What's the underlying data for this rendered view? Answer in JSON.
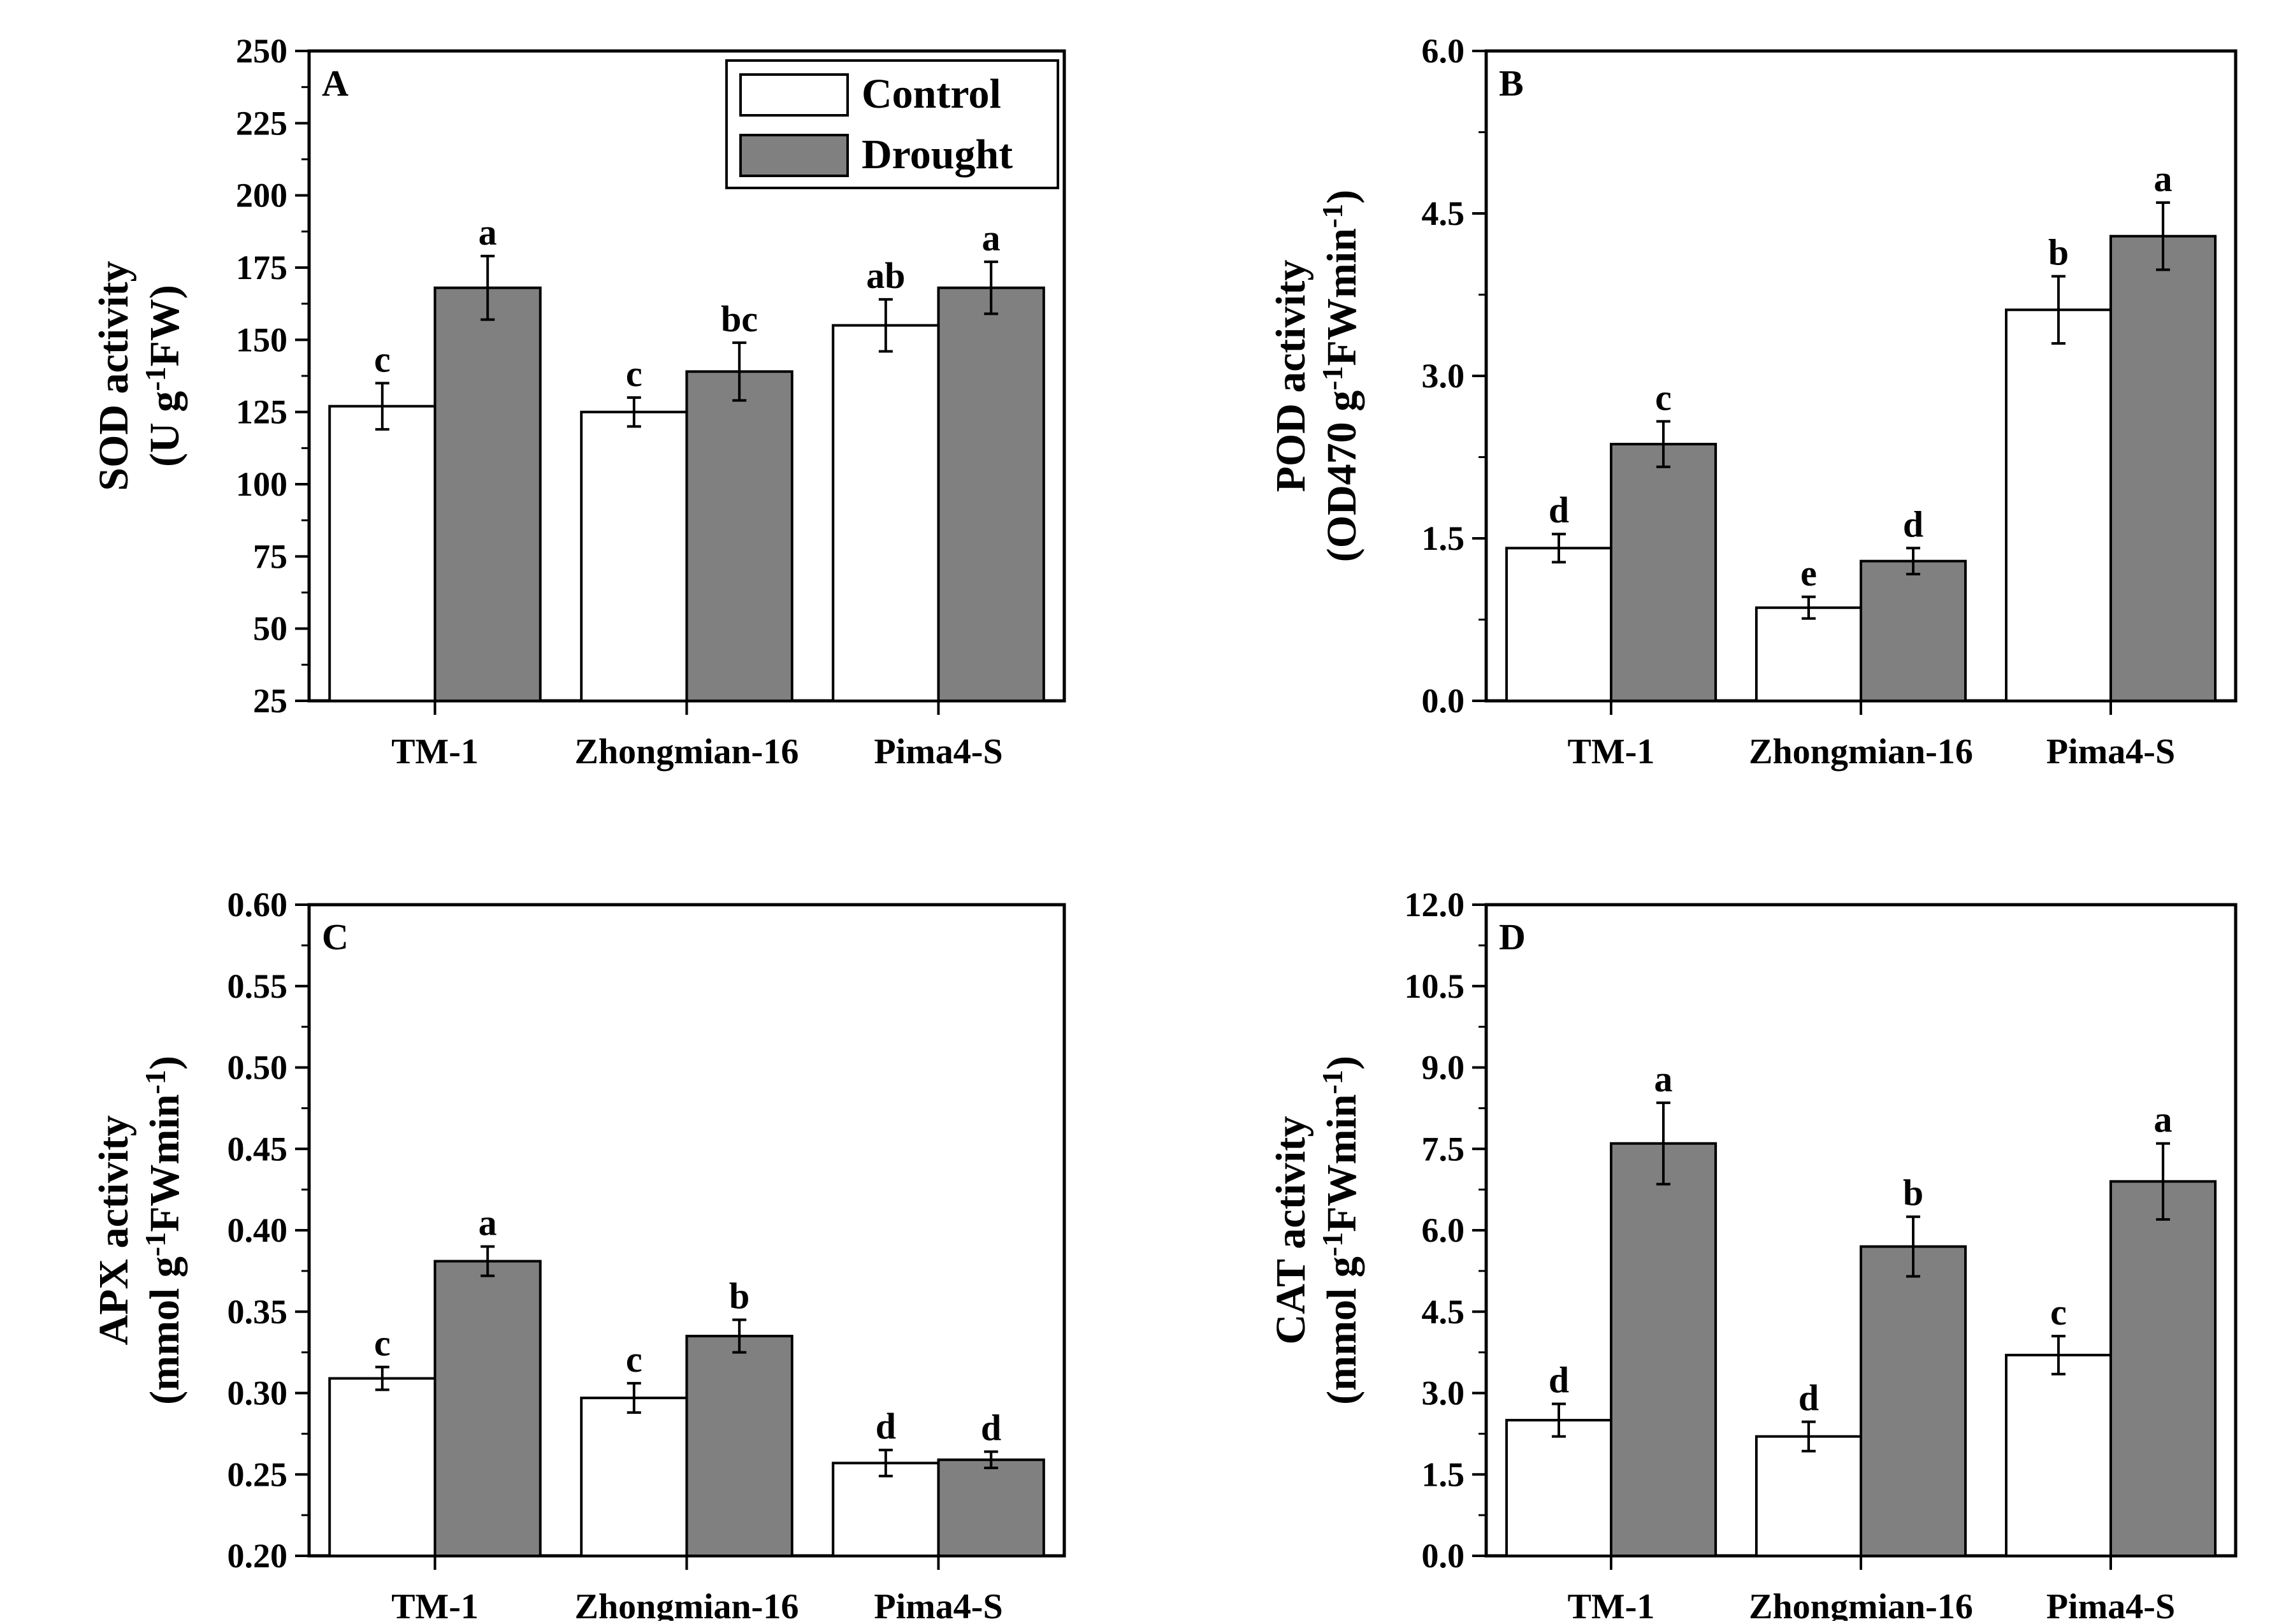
{
  "figure_legend": {
    "items": [
      {
        "label": "Control",
        "fill": "#ffffff"
      },
      {
        "label": "Drought",
        "fill": "#808080"
      }
    ]
  },
  "colors": {
    "control": "#ffffff",
    "drought": "#808080",
    "axis": "#000000"
  },
  "chart_data": [
    {
      "type": "bar",
      "panel_label": "A",
      "ylabel": {
        "main": "SOD activity",
        "l2_pre": "(U g",
        "l2_sup": "-1",
        "l2_post": "FW)"
      },
      "categories": [
        "TM-1",
        "Zhongmian-16",
        "Pima4-S"
      ],
      "ylim": [
        25,
        250
      ],
      "yticks": [
        25,
        50,
        75,
        100,
        125,
        150,
        175,
        200,
        225,
        250
      ],
      "tick_format": [
        "25",
        "50",
        "75",
        "100",
        "125",
        "150",
        "175",
        "200",
        "225",
        "250"
      ],
      "legend": "top-right",
      "series": [
        {
          "name": "Control",
          "values": [
            127,
            125,
            155
          ],
          "errors": [
            8,
            5,
            9
          ],
          "letters": [
            "c",
            "c",
            "ab"
          ]
        },
        {
          "name": "Drought",
          "values": [
            168,
            139,
            168
          ],
          "errors": [
            11,
            10,
            9
          ],
          "letters": [
            "a",
            "bc",
            "a"
          ]
        }
      ]
    },
    {
      "type": "bar",
      "panel_label": "B",
      "ylabel": {
        "main": "POD activity",
        "l2_pre": "(OD470 g",
        "l2_sup": "-1",
        "l2_post": "FWmin",
        "l2_sup2": "-1",
        "l2_end": ")"
      },
      "categories": [
        "TM-1",
        "Zhongmian-16",
        "Pima4-S"
      ],
      "ylim": [
        0,
        6
      ],
      "yticks": [
        0,
        1.5,
        3,
        4.5,
        6
      ],
      "tick_format": [
        "0.0",
        "1.5",
        "3.0",
        "4.5",
        "6.0"
      ],
      "series": [
        {
          "name": "Control",
          "values": [
            1.41,
            0.86,
            3.61
          ],
          "errors": [
            0.13,
            0.1,
            0.31
          ],
          "letters": [
            "d",
            "e",
            "b"
          ]
        },
        {
          "name": "Drought",
          "values": [
            2.37,
            1.29,
            4.29
          ],
          "errors": [
            0.21,
            0.12,
            0.31
          ],
          "letters": [
            "c",
            "d",
            "a"
          ]
        }
      ]
    },
    {
      "type": "bar",
      "panel_label": "C",
      "ylabel": {
        "main": "APX activity",
        "l2_pre": "(mmol g",
        "l2_sup": "-1",
        "l2_post": "FWmin",
        "l2_sup2": "-1",
        "l2_end": ")"
      },
      "categories": [
        "TM-1",
        "Zhongmian-16",
        "Pima4-S"
      ],
      "ylim": [
        0.2,
        0.6
      ],
      "yticks": [
        0.2,
        0.25,
        0.3,
        0.35,
        0.4,
        0.45,
        0.5,
        0.55,
        0.6
      ],
      "tick_format": [
        "0.20",
        "0.25",
        "0.30",
        "0.35",
        "0.40",
        "0.45",
        "0.50",
        "0.55",
        "0.60"
      ],
      "series": [
        {
          "name": "Control",
          "values": [
            0.309,
            0.297,
            0.257
          ],
          "errors": [
            0.007,
            0.009,
            0.008
          ],
          "letters": [
            "c",
            "c",
            "d"
          ]
        },
        {
          "name": "Drought",
          "values": [
            0.381,
            0.335,
            0.259
          ],
          "errors": [
            0.009,
            0.01,
            0.005
          ],
          "letters": [
            "a",
            "b",
            "d"
          ]
        }
      ]
    },
    {
      "type": "bar",
      "panel_label": "D",
      "ylabel": {
        "main": "CAT activity",
        "l2_pre": "(mmol g",
        "l2_sup": "-1",
        "l2_post": "FWmin",
        "l2_sup2": "-1",
        "l2_end": ")"
      },
      "categories": [
        "TM-1",
        "Zhongmian-16",
        "Pima4-S"
      ],
      "ylim": [
        0,
        12
      ],
      "yticks": [
        0,
        1.5,
        3,
        4.5,
        6,
        7.5,
        9,
        10.5,
        12
      ],
      "tick_format": [
        "0.0",
        "1.5",
        "3.0",
        "4.5",
        "6.0",
        "7.5",
        "9.0",
        "10.5",
        "12.0"
      ],
      "series": [
        {
          "name": "Control",
          "values": [
            2.5,
            2.2,
            3.7
          ],
          "errors": [
            0.3,
            0.27,
            0.35
          ],
          "letters": [
            "d",
            "d",
            "c"
          ]
        },
        {
          "name": "Drought",
          "values": [
            7.6,
            5.7,
            6.9
          ],
          "errors": [
            0.75,
            0.55,
            0.7
          ],
          "letters": [
            "a",
            "b",
            "a"
          ]
        }
      ]
    }
  ]
}
